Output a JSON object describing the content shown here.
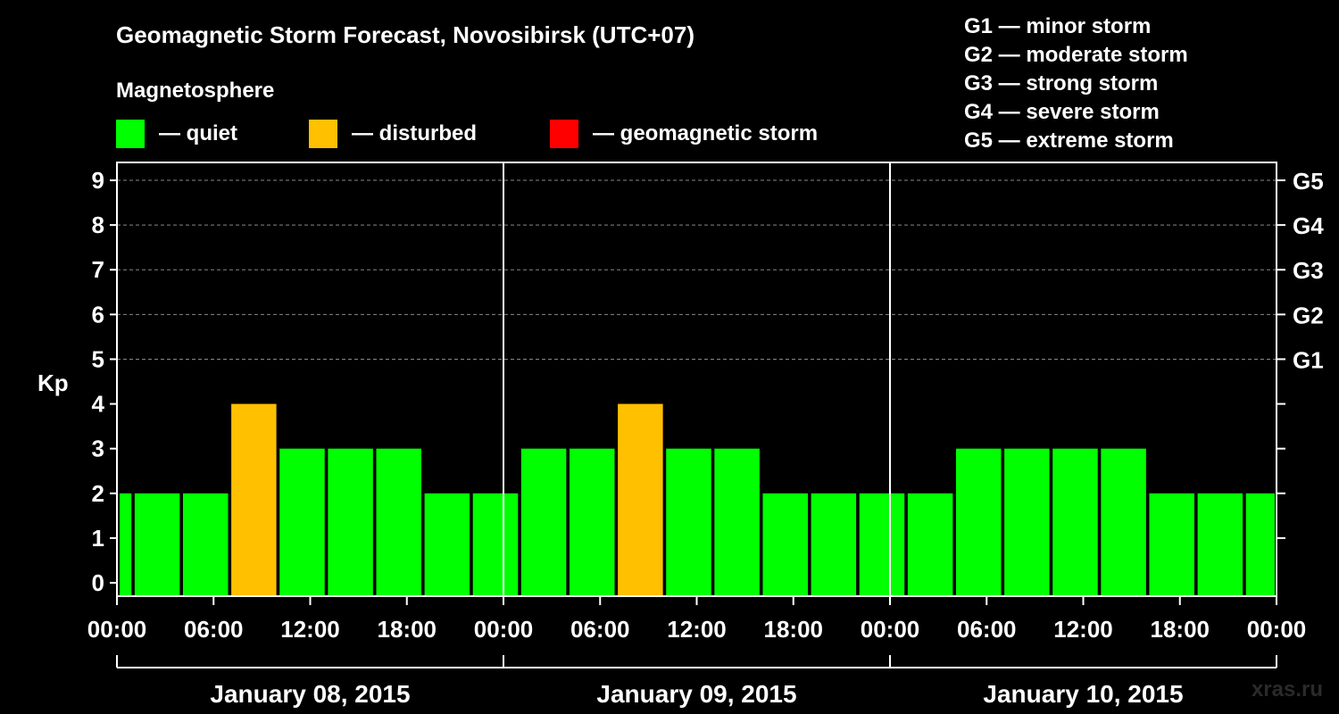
{
  "chart_data": {
    "type": "bar",
    "title": "Geomagnetic Storm Forecast, Novosibirsk (UTC+07)",
    "ylabel": "Kp",
    "ylim": [
      -0.3,
      9.4
    ],
    "yticks": [
      0,
      1,
      2,
      3,
      4,
      5,
      6,
      7,
      8,
      9
    ],
    "grid_dashed_at": [
      5,
      6,
      7,
      8,
      9
    ],
    "right_ticks": [
      {
        "value": 5,
        "label": "G1"
      },
      {
        "value": 6,
        "label": "G2"
      },
      {
        "value": 7,
        "label": "G3"
      },
      {
        "value": 8,
        "label": "G4"
      },
      {
        "value": 9,
        "label": "G5"
      }
    ],
    "x_range_hours": [
      0,
      72
    ],
    "xtick_labels": [
      "00:00",
      "06:00",
      "12:00",
      "18:00",
      "00:00",
      "06:00",
      "12:00",
      "18:00",
      "00:00",
      "06:00",
      "12:00",
      "18:00",
      "00:00"
    ],
    "day_labels": [
      "January 08, 2015",
      "January 09, 2015",
      "January 10, 2015"
    ],
    "bars": [
      {
        "start": 0,
        "end": 0.9,
        "kp": 2,
        "level": "quiet"
      },
      {
        "start": 1.1,
        "end": 3.9,
        "kp": 2,
        "level": "quiet"
      },
      {
        "start": 4.1,
        "end": 6.9,
        "kp": 2,
        "level": "quiet"
      },
      {
        "start": 7.1,
        "end": 9.9,
        "kp": 4,
        "level": "disturbed"
      },
      {
        "start": 10.1,
        "end": 12.9,
        "kp": 3,
        "level": "quiet"
      },
      {
        "start": 13.1,
        "end": 15.9,
        "kp": 3,
        "level": "quiet"
      },
      {
        "start": 16.1,
        "end": 18.9,
        "kp": 3,
        "level": "quiet"
      },
      {
        "start": 19.1,
        "end": 21.9,
        "kp": 2,
        "level": "quiet"
      },
      {
        "start": 22.1,
        "end": 24.9,
        "kp": 2,
        "level": "quiet"
      },
      {
        "start": 25.1,
        "end": 27.9,
        "kp": 3,
        "level": "quiet"
      },
      {
        "start": 28.1,
        "end": 30.9,
        "kp": 3,
        "level": "quiet"
      },
      {
        "start": 31.1,
        "end": 33.9,
        "kp": 4,
        "level": "disturbed"
      },
      {
        "start": 34.1,
        "end": 36.9,
        "kp": 3,
        "level": "quiet"
      },
      {
        "start": 37.1,
        "end": 39.9,
        "kp": 3,
        "level": "quiet"
      },
      {
        "start": 40.1,
        "end": 42.9,
        "kp": 2,
        "level": "quiet"
      },
      {
        "start": 43.1,
        "end": 45.9,
        "kp": 2,
        "level": "quiet"
      },
      {
        "start": 46.1,
        "end": 48.9,
        "kp": 2,
        "level": "quiet"
      },
      {
        "start": 49.1,
        "end": 51.9,
        "kp": 2,
        "level": "quiet"
      },
      {
        "start": 52.1,
        "end": 54.9,
        "kp": 3,
        "level": "quiet"
      },
      {
        "start": 55.1,
        "end": 57.9,
        "kp": 3,
        "level": "quiet"
      },
      {
        "start": 58.1,
        "end": 60.9,
        "kp": 3,
        "level": "quiet"
      },
      {
        "start": 61.1,
        "end": 63.9,
        "kp": 3,
        "level": "quiet"
      },
      {
        "start": 64.1,
        "end": 66.9,
        "kp": 2,
        "level": "quiet"
      },
      {
        "start": 67.1,
        "end": 69.9,
        "kp": 2,
        "level": "quiet"
      },
      {
        "start": 70.1,
        "end": 72,
        "kp": 2,
        "level": "quiet"
      }
    ],
    "level_colors": {
      "quiet": "#00ff00",
      "disturbed": "#ffc000",
      "storm": "#ff0000"
    }
  },
  "legend": {
    "heading": "Magnetosphere",
    "items": [
      {
        "label": "— quiet",
        "color": "#00ff00"
      },
      {
        "label": "— disturbed",
        "color": "#ffc000"
      },
      {
        "label": "— geomagnetic storm",
        "color": "#ff0000"
      }
    ]
  },
  "storm_scale": [
    "G1 — minor storm",
    "G2 — moderate storm",
    "G3 — strong storm",
    "G4 — severe storm",
    "G5 — extreme storm"
  ],
  "watermark": "xras.ru"
}
